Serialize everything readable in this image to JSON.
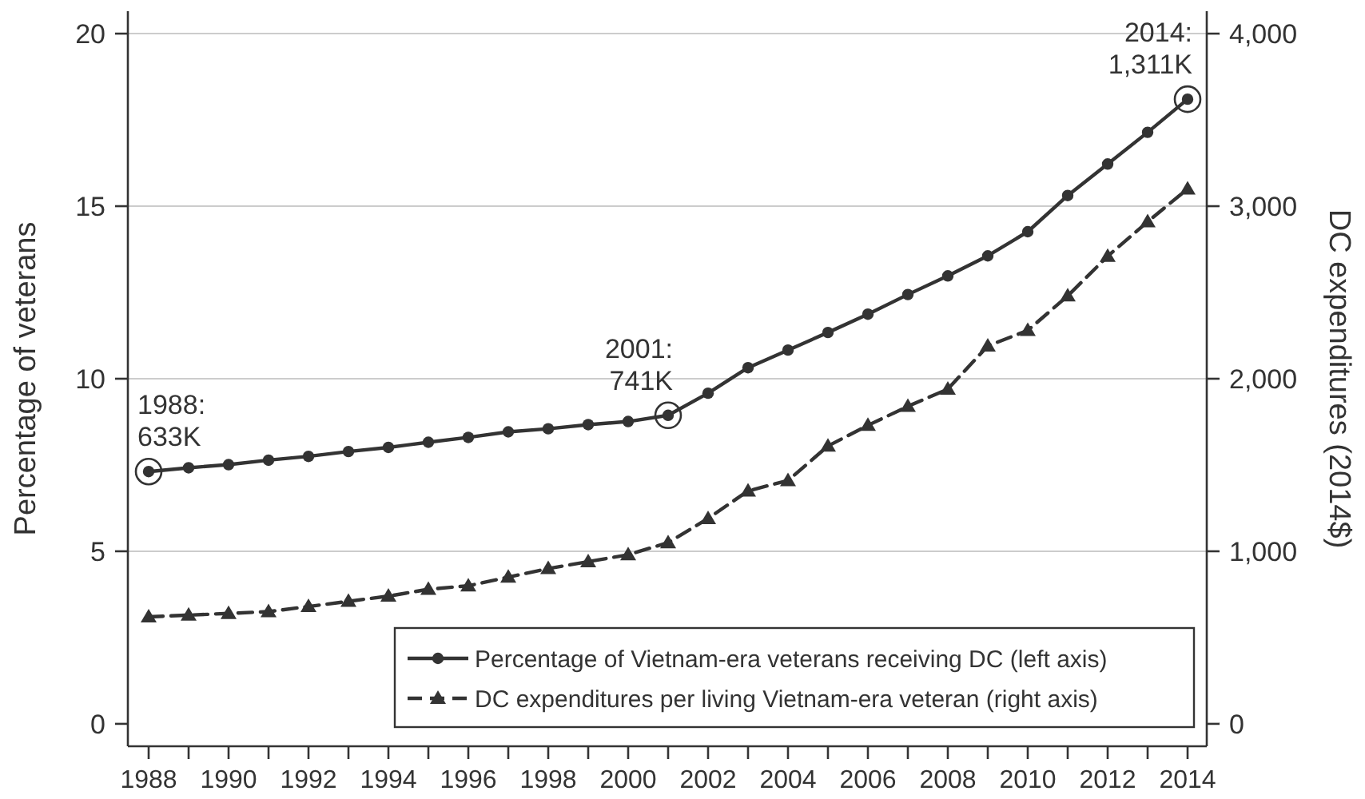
{
  "chart_data": {
    "type": "line",
    "ylabel": "Percentage of veterans",
    "y2label": "DC expenditures (2014$)",
    "x": [
      1988,
      1989,
      1990,
      1991,
      1992,
      1993,
      1994,
      1995,
      1996,
      1997,
      1998,
      1999,
      2000,
      2001,
      2002,
      2003,
      2004,
      2005,
      2006,
      2007,
      2008,
      2009,
      2010,
      2011,
      2012,
      2013,
      2014
    ],
    "series": [
      {
        "name": "Percentage of Vietnam-era veterans receiving DC (left axis)",
        "color": "#333333",
        "marker": "circle",
        "line_style": "solid",
        "values": [
          7.31,
          7.42,
          7.51,
          7.64,
          7.75,
          7.89,
          8.01,
          8.16,
          8.3,
          8.46,
          8.55,
          8.67,
          8.76,
          8.94,
          9.58,
          10.32,
          10.83,
          11.34,
          11.87,
          12.44,
          12.98,
          13.56,
          14.26,
          15.31,
          16.22,
          17.14,
          18.1
        ]
      },
      {
        "name": "DC expenditures per living Vietnam-era veteran (right axis)",
        "color": "#333333",
        "marker": "triangle",
        "line_style": "dashed",
        "axis": "y2",
        "values": [
          620,
          630,
          640,
          650,
          680,
          710,
          740,
          780,
          800,
          850,
          900,
          940,
          980,
          1050,
          1190,
          1350,
          1410,
          1610,
          1730,
          1840,
          1940,
          2190,
          2280,
          2480,
          2710,
          2910,
          3100
        ]
      }
    ],
    "xlim": [
      1987.48,
      2014.48
    ],
    "xticks": [
      1988,
      {
        "value": 1989,
        "label": null
      },
      1990,
      {
        "value": 1991,
        "label": null
      },
      1992,
      {
        "value": 1993,
        "label": null
      },
      1994,
      {
        "value": 1995,
        "label": null
      },
      1996,
      {
        "value": 1997,
        "label": null
      },
      1998,
      {
        "value": 1999,
        "label": null
      },
      2000,
      {
        "value": 2001,
        "label": null
      },
      2002,
      {
        "value": 2003,
        "label": null
      },
      2004,
      {
        "value": 2005,
        "label": null
      },
      2006,
      {
        "value": 2007,
        "label": null
      },
      2008,
      {
        "value": 2009,
        "label": null
      },
      2010,
      {
        "value": 2011,
        "label": null
      },
      2012,
      {
        "value": 2013,
        "label": null
      },
      2014
    ],
    "ylim": [
      -0.65,
      20.65
    ],
    "yticks": [
      0,
      5,
      10,
      15,
      20
    ],
    "y2lim": [
      -130,
      4130
    ],
    "y2ticks": [
      0,
      {
        "value": 1000,
        "label": "1,000"
      },
      {
        "value": 2000,
        "label": "2,000"
      },
      {
        "value": 3000,
        "label": "3,000"
      },
      {
        "value": 4000,
        "label": "4,000"
      }
    ],
    "grid": "y",
    "legend": "bottom right",
    "annotations": [
      {
        "text": "1988:\n633K",
        "x": 1988,
        "y": 7.31
      },
      {
        "text": "2001:\n741K",
        "x": 2001,
        "y": 8.94
      },
      {
        "text": "2014:\n1,311K",
        "x": 2014,
        "y": 18.1
      }
    ]
  }
}
